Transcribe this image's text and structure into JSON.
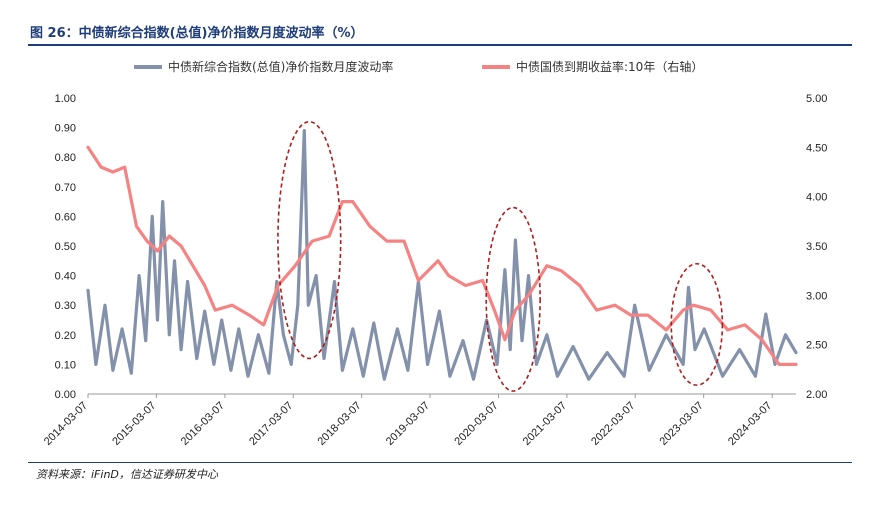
{
  "figure": {
    "title": "图 26：中债新综合指数(总值)净价指数月度波动率（%）",
    "source": "资料来源：iFinD，信达证券研发中心"
  },
  "colors": {
    "vol_series": "#8391ab",
    "yield_series": "#f58383",
    "highlight_ellipse": "#b01c1c",
    "title_rule": "#1f3d7a"
  },
  "chart_data": {
    "type": "line",
    "x_ticks": [
      "2014-03-07",
      "2015-03-07",
      "2016-03-07",
      "2017-03-07",
      "2018-03-07",
      "2019-03-07",
      "2020-03-07",
      "2021-03-07",
      "2022-03-07",
      "2023-03-07",
      "2024-03-07"
    ],
    "x_range": [
      "2014-03-07",
      "2024-07-12"
    ],
    "y_left": {
      "ylim": [
        0,
        1.0
      ],
      "ticks": [
        "0.00",
        "0.10",
        "0.20",
        "0.30",
        "0.40",
        "0.50",
        "0.60",
        "0.70",
        "0.80",
        "0.90",
        "1.00"
      ]
    },
    "y_right": {
      "ylim": [
        2.0,
        5.0
      ],
      "ticks": [
        "2.00",
        "2.50",
        "3.00",
        "3.50",
        "4.00",
        "4.50",
        "5.00"
      ]
    },
    "legend_position": "top",
    "series": [
      {
        "name": "中债新综合指数(总值)净价指数月度波动率",
        "axis": "left",
        "points": [
          [
            "2014-03-07",
            0.35
          ],
          [
            "2014-04-18",
            0.1
          ],
          [
            "2014-06-06",
            0.3
          ],
          [
            "2014-07-18",
            0.08
          ],
          [
            "2014-09-05",
            0.22
          ],
          [
            "2014-10-24",
            0.07
          ],
          [
            "2014-12-05",
            0.4
          ],
          [
            "2015-01-09",
            0.18
          ],
          [
            "2015-02-13",
            0.6
          ],
          [
            "2015-03-13",
            0.25
          ],
          [
            "2015-04-10",
            0.65
          ],
          [
            "2015-05-15",
            0.2
          ],
          [
            "2015-06-12",
            0.45
          ],
          [
            "2015-07-17",
            0.15
          ],
          [
            "2015-08-21",
            0.38
          ],
          [
            "2015-10-09",
            0.12
          ],
          [
            "2015-11-20",
            0.28
          ],
          [
            "2016-01-08",
            0.1
          ],
          [
            "2016-02-19",
            0.25
          ],
          [
            "2016-04-08",
            0.08
          ],
          [
            "2016-05-20",
            0.22
          ],
          [
            "2016-07-08",
            0.06
          ],
          [
            "2016-09-02",
            0.2
          ],
          [
            "2016-10-28",
            0.07
          ],
          [
            "2016-12-09",
            0.38
          ],
          [
            "2017-01-13",
            0.2
          ],
          [
            "2017-02-24",
            0.1
          ],
          [
            "2017-03-31",
            0.3
          ],
          [
            "2017-05-05",
            0.89
          ],
          [
            "2017-05-26",
            0.3
          ],
          [
            "2017-07-07",
            0.4
          ],
          [
            "2017-08-18",
            0.12
          ],
          [
            "2017-10-13",
            0.38
          ],
          [
            "2017-11-24",
            0.08
          ],
          [
            "2018-01-19",
            0.22
          ],
          [
            "2018-03-16",
            0.06
          ],
          [
            "2018-05-11",
            0.24
          ],
          [
            "2018-07-06",
            0.05
          ],
          [
            "2018-09-14",
            0.22
          ],
          [
            "2018-11-09",
            0.08
          ],
          [
            "2019-01-04",
            0.38
          ],
          [
            "2019-02-22",
            0.1
          ],
          [
            "2019-04-26",
            0.28
          ],
          [
            "2019-06-21",
            0.06
          ],
          [
            "2019-08-30",
            0.18
          ],
          [
            "2019-10-25",
            0.05
          ],
          [
            "2020-01-03",
            0.25
          ],
          [
            "2020-02-28",
            0.1
          ],
          [
            "2020-04-10",
            0.42
          ],
          [
            "2020-05-08",
            0.15
          ],
          [
            "2020-06-05",
            0.52
          ],
          [
            "2020-07-10",
            0.18
          ],
          [
            "2020-08-14",
            0.4
          ],
          [
            "2020-09-25",
            0.1
          ],
          [
            "2020-11-20",
            0.2
          ],
          [
            "2021-01-15",
            0.06
          ],
          [
            "2021-04-09",
            0.16
          ],
          [
            "2021-07-02",
            0.05
          ],
          [
            "2021-10-08",
            0.14
          ],
          [
            "2022-01-07",
            0.06
          ],
          [
            "2022-03-04",
            0.3
          ],
          [
            "2022-05-20",
            0.08
          ],
          [
            "2022-08-19",
            0.2
          ],
          [
            "2022-11-18",
            0.1
          ],
          [
            "2022-12-16",
            0.36
          ],
          [
            "2023-01-20",
            0.15
          ],
          [
            "2023-03-10",
            0.22
          ],
          [
            "2023-06-16",
            0.06
          ],
          [
            "2023-09-15",
            0.15
          ],
          [
            "2023-12-08",
            0.06
          ],
          [
            "2024-02-02",
            0.27
          ],
          [
            "2024-03-22",
            0.1
          ],
          [
            "2024-05-17",
            0.2
          ],
          [
            "2024-07-12",
            0.14
          ]
        ]
      },
      {
        "name": "中债国债到期收益率:10年（右轴）",
        "axis": "right",
        "points": [
          [
            "2014-03-07",
            4.5
          ],
          [
            "2014-05-16",
            4.3
          ],
          [
            "2014-07-18",
            4.25
          ],
          [
            "2014-09-19",
            4.3
          ],
          [
            "2014-11-21",
            3.7
          ],
          [
            "2015-01-16",
            3.55
          ],
          [
            "2015-03-13",
            3.45
          ],
          [
            "2015-05-15",
            3.6
          ],
          [
            "2015-07-17",
            3.5
          ],
          [
            "2015-09-18",
            3.3
          ],
          [
            "2015-11-20",
            3.1
          ],
          [
            "2016-01-15",
            2.85
          ],
          [
            "2016-04-15",
            2.9
          ],
          [
            "2016-07-15",
            2.8
          ],
          [
            "2016-09-30",
            2.7
          ],
          [
            "2016-12-16",
            3.1
          ],
          [
            "2017-03-17",
            3.3
          ],
          [
            "2017-06-16",
            3.55
          ],
          [
            "2017-09-15",
            3.6
          ],
          [
            "2017-11-24",
            3.95
          ],
          [
            "2018-01-19",
            3.95
          ],
          [
            "2018-04-20",
            3.7
          ],
          [
            "2018-07-20",
            3.55
          ],
          [
            "2018-10-19",
            3.55
          ],
          [
            "2019-01-04",
            3.15
          ],
          [
            "2019-04-19",
            3.35
          ],
          [
            "2019-06-14",
            3.2
          ],
          [
            "2019-09-13",
            3.1
          ],
          [
            "2019-12-13",
            3.15
          ],
          [
            "2020-02-14",
            2.85
          ],
          [
            "2020-04-10",
            2.55
          ],
          [
            "2020-06-05",
            2.85
          ],
          [
            "2020-08-14",
            3.0
          ],
          [
            "2020-11-20",
            3.3
          ],
          [
            "2021-02-05",
            3.25
          ],
          [
            "2021-05-14",
            3.1
          ],
          [
            "2021-08-13",
            2.85
          ],
          [
            "2021-11-19",
            2.9
          ],
          [
            "2022-02-11",
            2.8
          ],
          [
            "2022-05-13",
            2.8
          ],
          [
            "2022-08-19",
            2.65
          ],
          [
            "2022-11-18",
            2.85
          ],
          [
            "2023-01-13",
            2.9
          ],
          [
            "2023-04-14",
            2.85
          ],
          [
            "2023-07-14",
            2.65
          ],
          [
            "2023-10-13",
            2.7
          ],
          [
            "2024-01-12",
            2.55
          ],
          [
            "2024-04-12",
            2.3
          ],
          [
            "2024-07-12",
            2.3
          ]
        ]
      }
    ],
    "highlights": [
      {
        "from": "2016-12-15",
        "to": "2017-11-15",
        "v_top": 0.92,
        "v_bottom": 0.12
      },
      {
        "from": "2020-01-01",
        "to": "2020-10-15",
        "v_top": 0.63,
        "v_bottom": 0.01
      },
      {
        "from": "2022-09-15",
        "to": "2023-06-15",
        "v_top": 0.44,
        "v_bottom": 0.03
      }
    ]
  }
}
